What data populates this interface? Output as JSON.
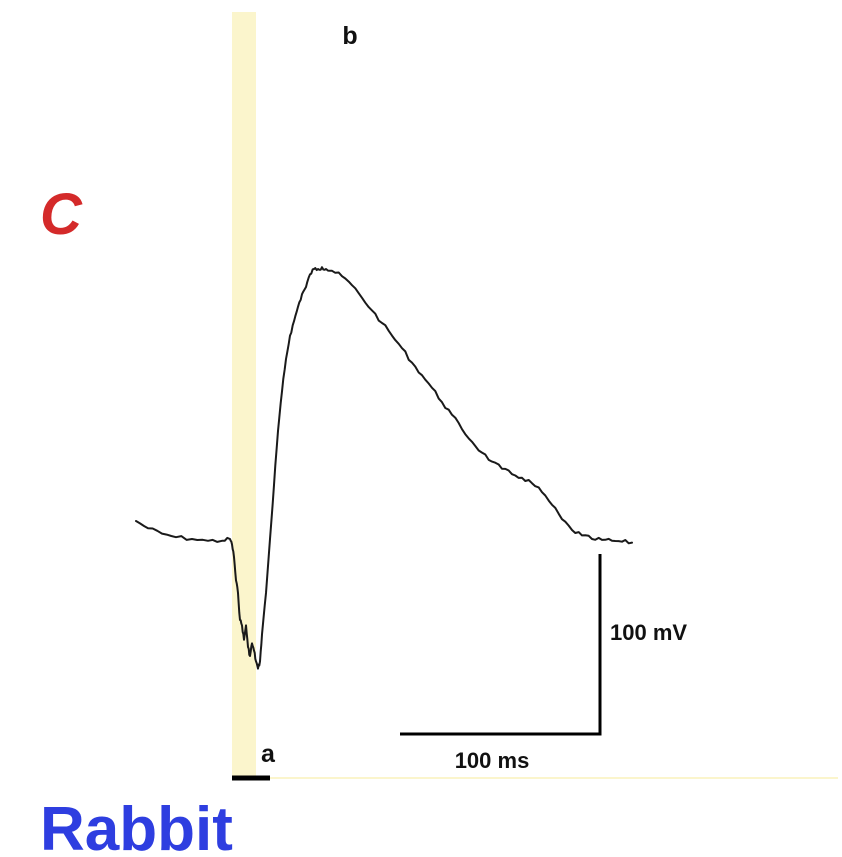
{
  "figure": {
    "panel_letter": "C",
    "species_label": "Rabbit",
    "colors": {
      "panel_letter": "#d42a2a",
      "species_label": "#2e3ee0",
      "highlight": "#fbf5cc",
      "trace": "#1a1a1a",
      "scale_bar": "#000000"
    }
  },
  "chart_data": {
    "type": "line",
    "title": "",
    "xlabel": "",
    "ylabel": "",
    "x_unit": "ms",
    "y_unit": "mV",
    "xlim": [
      -48,
      220
    ],
    "ylim": [
      -87,
      148
    ],
    "grid": false,
    "legend": "none",
    "series": [
      {
        "x": [
          -48,
          -42,
          -35,
          -28,
          -20,
          -12,
          -5,
          -1,
          0,
          1,
          2,
          3,
          4,
          5,
          6,
          7,
          8,
          9,
          10,
          11,
          12,
          13,
          14,
          15,
          17,
          19,
          21,
          23,
          25,
          27,
          29,
          31,
          33,
          35,
          37,
          39,
          41,
          43,
          45,
          47,
          50,
          55,
          60,
          65,
          70,
          75,
          80,
          85,
          90,
          95,
          100,
          105,
          110,
          115,
          120,
          125,
          130,
          135,
          140,
          145,
          150,
          155,
          160,
          165,
          170,
          175,
          180,
          185,
          190,
          195,
          200
        ],
        "y": [
          0,
          -4,
          -7,
          -9,
          -10,
          -11,
          -11,
          -10,
          -13,
          -20,
          -33,
          -40,
          -55,
          -58,
          -66,
          -58,
          -70,
          -75,
          -68,
          -72,
          -78,
          -82,
          -78,
          -63,
          -40,
          -10,
          20,
          50,
          72,
          90,
          103,
          111,
          119,
          126,
          130,
          137,
          140,
          140,
          141,
          140,
          139,
          136,
          131,
          124,
          117,
          110,
          103,
          96,
          88,
          81,
          74,
          66,
          59,
          51,
          44,
          38,
          33,
          29,
          26,
          24,
          21,
          16,
          9,
          1,
          -5,
          -8,
          -10,
          -10.5,
          -11,
          -11.5,
          -12
        ]
      }
    ],
    "annotations": [
      {
        "text": "a",
        "x": 9,
        "y": -88
      },
      {
        "text": "b",
        "x": 40,
        "y": 145
      }
    ],
    "highlight_window_ms": [
      0,
      12
    ],
    "stimulus_bar_ms": [
      0,
      12
    ],
    "scale_bars": {
      "time": {
        "value": 100,
        "label": "100 ms"
      },
      "voltage": {
        "value": 100,
        "label": "100 mV"
      }
    }
  }
}
